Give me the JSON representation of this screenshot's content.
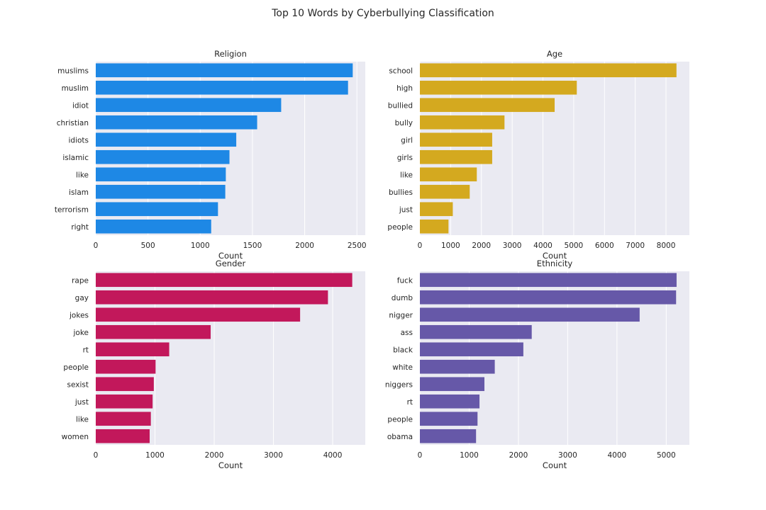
{
  "figure": {
    "suptitle": "Top 10 Words by Cyberbullying Classification",
    "background_color": "#ffffff",
    "axes_background_color": "#eaeaf2",
    "grid_color": "#ffffff"
  },
  "chart_data": [
    {
      "type": "bar",
      "orientation": "horizontal",
      "title": "Religion",
      "xlabel": "Count",
      "ylabel": "",
      "color": "#1e88e5",
      "categories": [
        "muslims",
        "muslim",
        "idiot",
        "christian",
        "idiots",
        "islamic",
        "like",
        "islam",
        "terrorism",
        "right"
      ],
      "values": [
        2460,
        2415,
        1775,
        1545,
        1345,
        1280,
        1245,
        1240,
        1170,
        1105
      ],
      "xlim": [
        0,
        2580
      ],
      "xticks": [
        0,
        500,
        1000,
        1500,
        2000,
        2500
      ],
      "grid": true
    },
    {
      "type": "bar",
      "orientation": "horizontal",
      "title": "Age",
      "xlabel": "Count",
      "ylabel": "",
      "color": "#d4a91f",
      "categories": [
        "school",
        "high",
        "bullied",
        "bully",
        "girl",
        "girls",
        "like",
        "bullies",
        "just",
        "people"
      ],
      "values": [
        8340,
        5100,
        4380,
        2750,
        2350,
        2350,
        1850,
        1620,
        1070,
        930
      ],
      "xlim": [
        0,
        8760
      ],
      "xticks": [
        0,
        1000,
        2000,
        3000,
        4000,
        5000,
        6000,
        7000,
        8000
      ],
      "grid": true
    },
    {
      "type": "bar",
      "orientation": "horizontal",
      "title": "Gender",
      "xlabel": "Count",
      "ylabel": "",
      "color": "#c2185b",
      "categories": [
        "rape",
        "gay",
        "jokes",
        "joke",
        "rt",
        "people",
        "sexist",
        "just",
        "like",
        "women"
      ],
      "values": [
        4330,
        3920,
        3450,
        1940,
        1240,
        1010,
        980,
        960,
        930,
        910
      ],
      "xlim": [
        0,
        4550
      ],
      "xticks": [
        0,
        1000,
        2000,
        3000,
        4000
      ],
      "grid": true
    },
    {
      "type": "bar",
      "orientation": "horizontal",
      "title": "Ethnicity",
      "xlabel": "Count",
      "ylabel": "",
      "color": "#6658a8",
      "categories": [
        "fuck",
        "dumb",
        "nigger",
        "ass",
        "black",
        "white",
        "niggers",
        "rt",
        "people",
        "obama"
      ],
      "values": [
        5210,
        5200,
        4460,
        2270,
        2100,
        1520,
        1310,
        1210,
        1170,
        1140
      ],
      "xlim": [
        0,
        5470
      ],
      "xticks": [
        0,
        1000,
        2000,
        3000,
        4000,
        5000
      ],
      "grid": true
    }
  ]
}
